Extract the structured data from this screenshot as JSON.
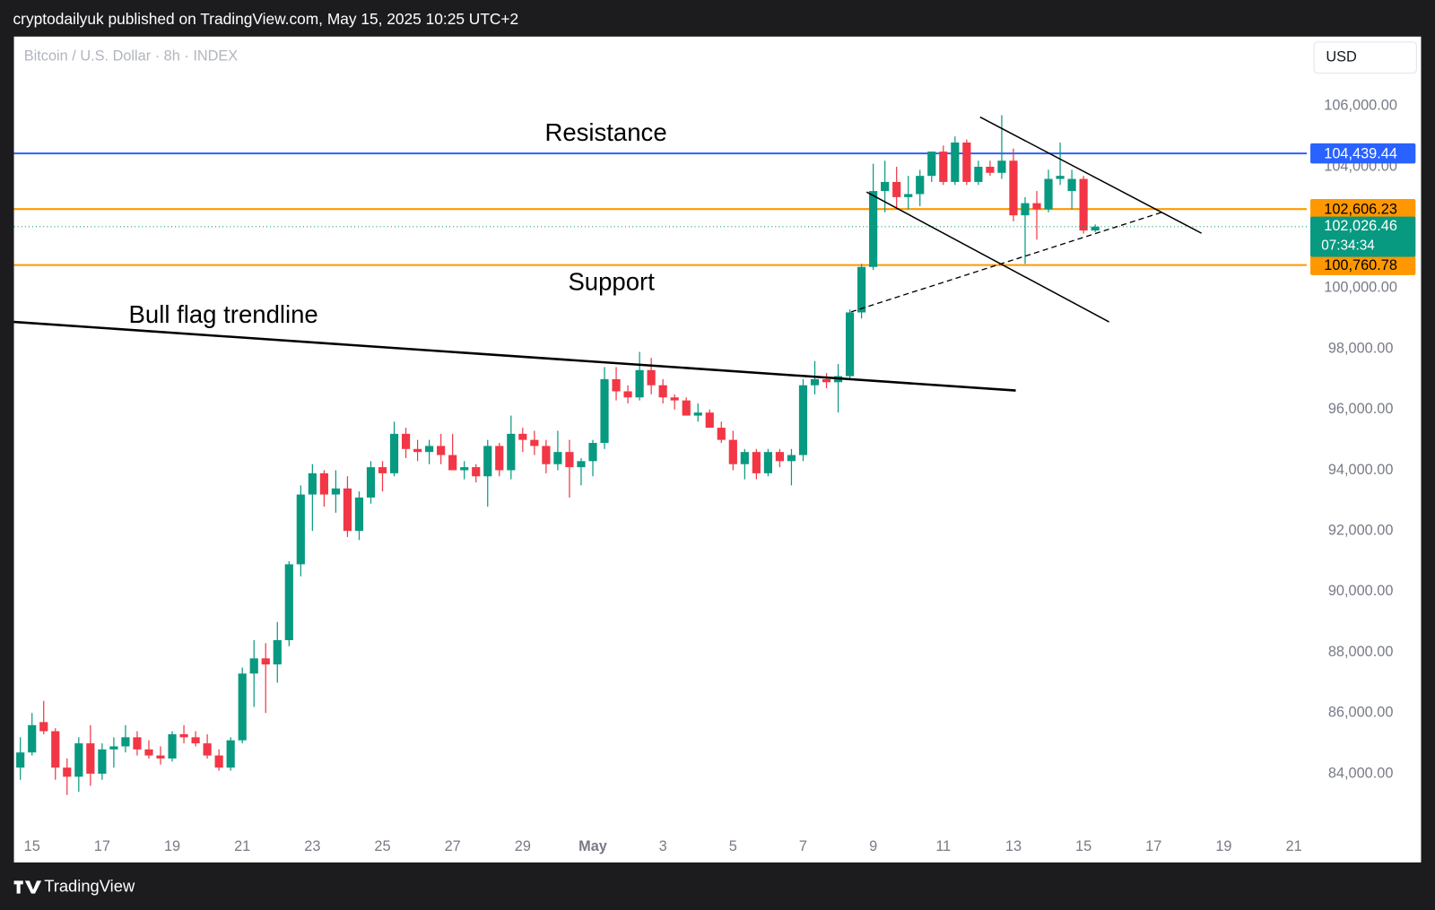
{
  "chart_data": {
    "type": "candlestick",
    "header": "cryptodailyuk published on TradingView.com, May 15, 2025 10:25 UTC+2",
    "title": "Bitcoin / U.S. Dollar · 8h · INDEX",
    "currency": "USD",
    "footer": "TradingView",
    "up_color": "#089981",
    "down_color": "#f23645",
    "categories": [
      null,
      "15",
      null,
      null,
      null,
      null,
      null,
      "17",
      null,
      null,
      null,
      null,
      null,
      "19",
      null,
      null,
      null,
      null,
      null,
      "21",
      null,
      null,
      null,
      null,
      null,
      "23",
      null,
      null,
      null,
      null,
      null,
      "25",
      null,
      null,
      null,
      null,
      null,
      "27",
      null,
      null,
      null,
      null,
      null,
      "29",
      null,
      null,
      null,
      null,
      null,
      "May",
      null,
      null,
      null,
      null,
      null,
      "3",
      null,
      null,
      null,
      null,
      null,
      "5",
      null,
      null,
      null,
      null,
      null,
      "7",
      null,
      null,
      null,
      null,
      null,
      "9",
      null,
      null,
      null,
      null,
      null,
      "11",
      null,
      null,
      null,
      null,
      null,
      "13",
      null,
      null,
      null,
      null,
      null,
      "15",
      null,
      null,
      null,
      null,
      null,
      "17",
      null,
      null,
      null,
      null,
      null,
      "19",
      null,
      null,
      null,
      null,
      null,
      "21"
    ],
    "open": [
      84200,
      84700,
      85700,
      85400,
      84200,
      83900,
      85000,
      84000,
      84800,
      84900,
      85200,
      84800,
      84600,
      84500,
      85300,
      85200,
      85000,
      84600,
      84200,
      85100,
      87300,
      87800,
      87600,
      88400,
      90900,
      93200,
      93900,
      93200,
      93400,
      92000,
      93100,
      94100,
      93900,
      95200,
      94700,
      94600,
      94800,
      94500,
      94000,
      94100,
      93800,
      94800,
      94000,
      95200,
      95000,
      94800,
      94200,
      94600,
      94100,
      94300,
      94900,
      97000,
      96600,
      96400,
      97300,
      96800,
      96400,
      96300,
      95800,
      95900,
      95400,
      95000,
      94200,
      94600,
      93900,
      94600,
      94300,
      94500,
      96800,
      97000,
      96900,
      97100,
      99200,
      100700,
      103200,
      103500,
      103000,
      103100,
      103700,
      104500,
      103500,
      104800,
      103500,
      104000,
      103800,
      104200,
      102400,
      102800,
      102600,
      103600,
      103200,
      103600,
      101900,
      null,
      null,
      null,
      null,
      null,
      null,
      null,
      null,
      null,
      null,
      null,
      null,
      null,
      null,
      null,
      null,
      null
    ],
    "high": [
      85200,
      86000,
      86400,
      85500,
      84500,
      85200,
      85600,
      85000,
      85200,
      85600,
      85400,
      85100,
      84900,
      85400,
      85600,
      85400,
      85300,
      84800,
      85200,
      87500,
      88400,
      88300,
      89000,
      91000,
      93500,
      94200,
      94000,
      94000,
      93800,
      93300,
      94300,
      94300,
      95600,
      95400,
      95000,
      95000,
      95200,
      95200,
      94300,
      94200,
      95000,
      94900,
      95800,
      95400,
      95300,
      95000,
      95300,
      95000,
      94400,
      95000,
      97400,
      97400,
      96800,
      97900,
      97700,
      97000,
      96500,
      96400,
      96200,
      96000,
      95600,
      95300,
      94700,
      94700,
      94700,
      94700,
      94700,
      97000,
      97600,
      97200,
      97500,
      99300,
      100800,
      104100,
      104200,
      104000,
      103700,
      103900,
      104500,
      104700,
      105000,
      104900,
      104200,
      104200,
      105700,
      104600,
      103000,
      103200,
      103900,
      104800,
      103900,
      103700,
      102100,
      null,
      null,
      null,
      null,
      null,
      null,
      null,
      null,
      null,
      null,
      null,
      null,
      null,
      null,
      null,
      null,
      null
    ],
    "low": [
      83800,
      84600,
      85300,
      83800,
      83300,
      83400,
      83600,
      83800,
      84200,
      84700,
      84600,
      84500,
      84300,
      84400,
      85000,
      84900,
      84500,
      84100,
      84100,
      85000,
      86200,
      86000,
      87000,
      88200,
      90500,
      92000,
      92800,
      92600,
      91800,
      91700,
      92900,
      93300,
      93800,
      94400,
      94300,
      94200,
      94200,
      94000,
      93700,
      93600,
      92800,
      93800,
      93700,
      94600,
      94500,
      93900,
      94000,
      93100,
      93500,
      93800,
      94700,
      96300,
      96200,
      96300,
      96500,
      96200,
      96000,
      95800,
      95600,
      95400,
      94900,
      94000,
      93700,
      93700,
      93800,
      94100,
      93500,
      94300,
      96500,
      96700,
      95900,
      97000,
      99000,
      100600,
      102500,
      102600,
      102600,
      102700,
      103500,
      103400,
      103400,
      103400,
      103400,
      103700,
      103600,
      102200,
      100800,
      101600,
      102500,
      103400,
      102600,
      101800,
      101850,
      null,
      null,
      null,
      null,
      null,
      null,
      null,
      null,
      null,
      null,
      null,
      null,
      null,
      null,
      null,
      null,
      null
    ],
    "close": [
      84700,
      85600,
      85400,
      84200,
      83900,
      85000,
      84000,
      84800,
      84900,
      85200,
      84800,
      84600,
      84500,
      85300,
      85200,
      85000,
      84600,
      84200,
      85100,
      87300,
      87800,
      87600,
      88400,
      90900,
      93200,
      93900,
      93200,
      93400,
      92000,
      93100,
      94100,
      93900,
      95200,
      94700,
      94600,
      94800,
      94500,
      94000,
      94100,
      93800,
      94800,
      94000,
      95200,
      95000,
      94800,
      94200,
      94600,
      94100,
      94300,
      94900,
      97000,
      96600,
      96400,
      97300,
      96800,
      96400,
      96300,
      95800,
      95900,
      95400,
      95000,
      94200,
      94600,
      93900,
      94600,
      94300,
      94500,
      96800,
      97000,
      96900,
      97100,
      99200,
      100700,
      103200,
      103500,
      103000,
      103100,
      103700,
      104500,
      103500,
      104800,
      103500,
      104000,
      103800,
      104200,
      102400,
      102800,
      102600,
      103600,
      103700,
      103600,
      101900,
      102026.46,
      null,
      null,
      null,
      null,
      null,
      null,
      null,
      null,
      null,
      null,
      null,
      null,
      null,
      null,
      null,
      null,
      null
    ],
    "ylim": [
      81075,
      108290
    ],
    "yticks": [
      {
        "value": 84000,
        "label": "84,000.00"
      },
      {
        "value": 86000,
        "label": "86,000.00"
      },
      {
        "value": 88000,
        "label": "88,000.00"
      },
      {
        "value": 90000,
        "label": "90,000.00"
      },
      {
        "value": 92000,
        "label": "92,000.00"
      },
      {
        "value": 94000,
        "label": "94,000.00"
      },
      {
        "value": 96000,
        "label": "96,000.00"
      },
      {
        "value": 98000,
        "label": "98,000.00"
      },
      {
        "value": 100000,
        "label": "100,000.00"
      },
      {
        "value": 102000,
        "label": "102,000.00"
      },
      {
        "value": 104000,
        "label": "104,000.00"
      },
      {
        "value": 106000,
        "label": "106,000.00"
      }
    ],
    "grid": false,
    "levels": [
      {
        "value": 104439.44,
        "label": "104,439.44",
        "color": "#2962ff",
        "text_color": "#ffffff"
      },
      {
        "value": 102606.23,
        "label": "102,606.23",
        "color": "#ff9800",
        "text_color": "#000000"
      },
      {
        "value": 100760.78,
        "label": "100,760.78",
        "color": "#ff9800",
        "text_color": "#000000"
      }
    ],
    "last_price": {
      "value": 102026.46,
      "label": "102,026.46",
      "countdown": "07:34:34",
      "color": "#089981"
    },
    "annotations": [
      "Resistance",
      "Support",
      "Bull flag trendline"
    ]
  }
}
